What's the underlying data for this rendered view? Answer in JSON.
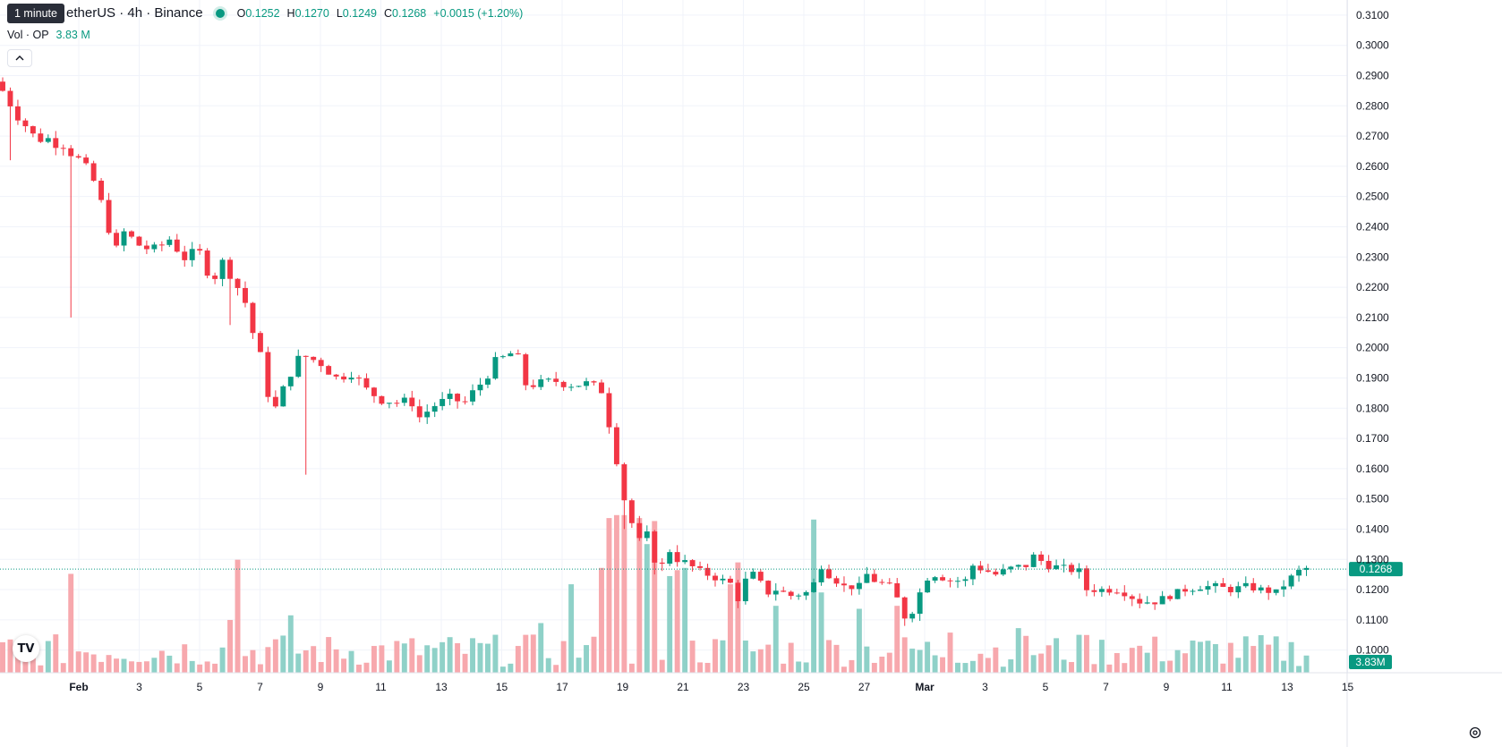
{
  "tooltip": "1 minute",
  "legend": {
    "symbol": "OPUSDT · TetherUS · 4h · Binance",
    "symbol_visible": "etherUS · 4h · Binance",
    "o_key": "O",
    "o": "0.1252",
    "h_key": "H",
    "h": "0.1270",
    "l_key": "L",
    "l": "0.1249",
    "c_key": "C",
    "c": "0.1268",
    "change": "+0.0015 (+1.20%)"
  },
  "volume_legend": {
    "label": "Vol · OP",
    "value": "3.83 M"
  },
  "collapse_icon": "chevron-up-icon",
  "logo": "TV",
  "colors": {
    "up": "#089981",
    "down": "#f23645",
    "up_vol": "#8fd1c8",
    "down_vol": "#f7a8ad",
    "grid": "#f0f3fa",
    "price_line": "#089981"
  },
  "chart_data": {
    "type": "candlestick",
    "interval": "4h",
    "y_axis": {
      "ticks": [
        "0.1000",
        "0.1100",
        "0.1200",
        "0.1300",
        "0.1400",
        "0.1500",
        "0.1600",
        "0.1700",
        "0.1800",
        "0.1900",
        "0.2000",
        "0.2100",
        "0.2200",
        "0.2300",
        "0.2400",
        "0.2500",
        "0.2600",
        "0.2700",
        "0.2800",
        "0.2900",
        "0.3000",
        "0.3100"
      ],
      "range": [
        0.0925,
        0.315
      ],
      "current_price_label": "0.1268",
      "current_volume_label": "3.83M"
    },
    "x_axis": {
      "ticks": [
        "Feb",
        "3",
        "5",
        "7",
        "9",
        "11",
        "13",
        "15",
        "17",
        "19",
        "21",
        "23",
        "25",
        "27",
        "Mar",
        "3",
        "5",
        "7",
        "9",
        "11",
        "13",
        "15"
      ]
    },
    "grid": true,
    "close_path": [
      [
        0,
        0.285
      ],
      [
        4,
        0.27
      ],
      [
        8,
        0.268
      ],
      [
        10,
        0.262
      ],
      [
        12,
        0.255
      ],
      [
        14,
        0.24
      ],
      [
        15,
        0.232
      ],
      [
        16,
        0.238
      ],
      [
        18,
        0.234
      ],
      [
        20,
        0.232
      ],
      [
        22,
        0.236
      ],
      [
        24,
        0.23
      ],
      [
        26,
        0.231
      ],
      [
        27,
        0.226
      ],
      [
        28,
        0.224
      ],
      [
        29,
        0.228
      ],
      [
        30,
        0.225
      ],
      [
        32,
        0.215
      ],
      [
        33,
        0.205
      ],
      [
        34,
        0.197
      ],
      [
        35,
        0.185
      ],
      [
        36,
        0.18
      ],
      [
        38,
        0.192
      ],
      [
        39,
        0.196
      ],
      [
        40,
        0.197
      ],
      [
        42,
        0.195
      ],
      [
        44,
        0.19
      ],
      [
        46,
        0.192
      ],
      [
        48,
        0.186
      ],
      [
        50,
        0.183
      ],
      [
        52,
        0.182
      ],
      [
        54,
        0.182
      ],
      [
        55,
        0.177
      ],
      [
        57,
        0.181
      ],
      [
        59,
        0.183
      ],
      [
        61,
        0.182
      ],
      [
        63,
        0.188
      ],
      [
        65,
        0.195
      ],
      [
        67,
        0.198
      ],
      [
        68,
        0.196
      ],
      [
        69,
        0.188
      ],
      [
        71,
        0.188
      ],
      [
        73,
        0.189
      ],
      [
        75,
        0.188
      ],
      [
        76,
        0.188
      ],
      [
        77,
        0.188
      ],
      [
        78,
        0.187
      ],
      [
        79,
        0.186
      ],
      [
        80,
        0.175
      ],
      [
        81,
        0.163
      ],
      [
        82,
        0.15
      ],
      [
        83,
        0.142
      ],
      [
        84,
        0.136
      ],
      [
        85,
        0.138
      ],
      [
        86,
        0.13
      ],
      [
        87,
        0.128
      ],
      [
        88,
        0.133
      ],
      [
        89,
        0.13
      ],
      [
        90,
        0.129
      ],
      [
        92,
        0.126
      ],
      [
        94,
        0.124
      ],
      [
        96,
        0.122
      ],
      [
        97,
        0.117
      ],
      [
        98,
        0.123
      ],
      [
        99,
        0.125
      ],
      [
        100,
        0.122
      ],
      [
        101,
        0.119
      ],
      [
        102,
        0.12
      ],
      [
        104,
        0.118
      ],
      [
        106,
        0.119
      ],
      [
        107,
        0.122
      ],
      [
        108,
        0.128
      ],
      [
        109,
        0.125
      ],
      [
        111,
        0.121
      ],
      [
        113,
        0.121
      ],
      [
        114,
        0.125
      ],
      [
        115,
        0.123
      ],
      [
        117,
        0.121
      ],
      [
        118,
        0.117
      ],
      [
        119,
        0.111
      ],
      [
        120,
        0.113
      ],
      [
        121,
        0.119
      ],
      [
        122,
        0.124
      ],
      [
        123,
        0.125
      ],
      [
        125,
        0.123
      ],
      [
        127,
        0.123
      ],
      [
        128,
        0.128
      ],
      [
        130,
        0.126
      ],
      [
        131,
        0.125
      ],
      [
        133,
        0.127
      ],
      [
        135,
        0.128
      ],
      [
        136,
        0.131
      ],
      [
        138,
        0.128
      ],
      [
        140,
        0.127
      ],
      [
        142,
        0.126
      ],
      [
        143,
        0.12
      ],
      [
        145,
        0.12
      ],
      [
        147,
        0.12
      ],
      [
        148,
        0.119
      ],
      [
        150,
        0.116
      ],
      [
        152,
        0.116
      ],
      [
        154,
        0.118
      ],
      [
        156,
        0.12
      ],
      [
        158,
        0.121
      ],
      [
        160,
        0.121
      ],
      [
        162,
        0.12
      ],
      [
        164,
        0.121
      ],
      [
        166,
        0.12
      ],
      [
        168,
        0.119
      ],
      [
        170,
        0.124
      ],
      [
        171,
        0.126
      ],
      [
        172,
        0.127
      ]
    ],
    "wicks": [
      [
        1,
        0.262
      ],
      [
        9,
        0.21
      ],
      [
        30,
        0.2075
      ],
      [
        40,
        0.158
      ],
      [
        47,
        0.203
      ],
      [
        82,
        0.14
      ],
      [
        86,
        0.125
      ],
      [
        106,
        0.117
      ],
      [
        119,
        0.108
      ],
      [
        140,
        0.13
      ]
    ],
    "volume": {
      "range_max": 0.1,
      "spikes": [
        [
          9,
          0.0665
        ],
        [
          30,
          0.0355
        ],
        [
          31,
          0.076
        ],
        [
          38,
          0.0386
        ],
        [
          71,
          0.0334
        ],
        [
          75,
          0.0595
        ],
        [
          79,
          0.0705
        ],
        [
          80,
          0.104
        ],
        [
          81,
          0.106
        ],
        [
          82,
          0.106
        ],
        [
          84,
          0.104
        ],
        [
          85,
          0.0865
        ],
        [
          86,
          0.102
        ],
        [
          88,
          0.065
        ],
        [
          89,
          0.069
        ],
        [
          90,
          0.0705
        ],
        [
          96,
          0.0595
        ],
        [
          97,
          0.0742
        ],
        [
          102,
          0.045
        ],
        [
          107,
          0.103
        ],
        [
          108,
          0.054
        ],
        [
          113,
          0.043
        ],
        [
          118,
          0.045
        ],
        [
          125,
          0.027
        ],
        [
          134,
          0.03
        ],
        [
          142,
          0.0255
        ]
      ]
    }
  }
}
